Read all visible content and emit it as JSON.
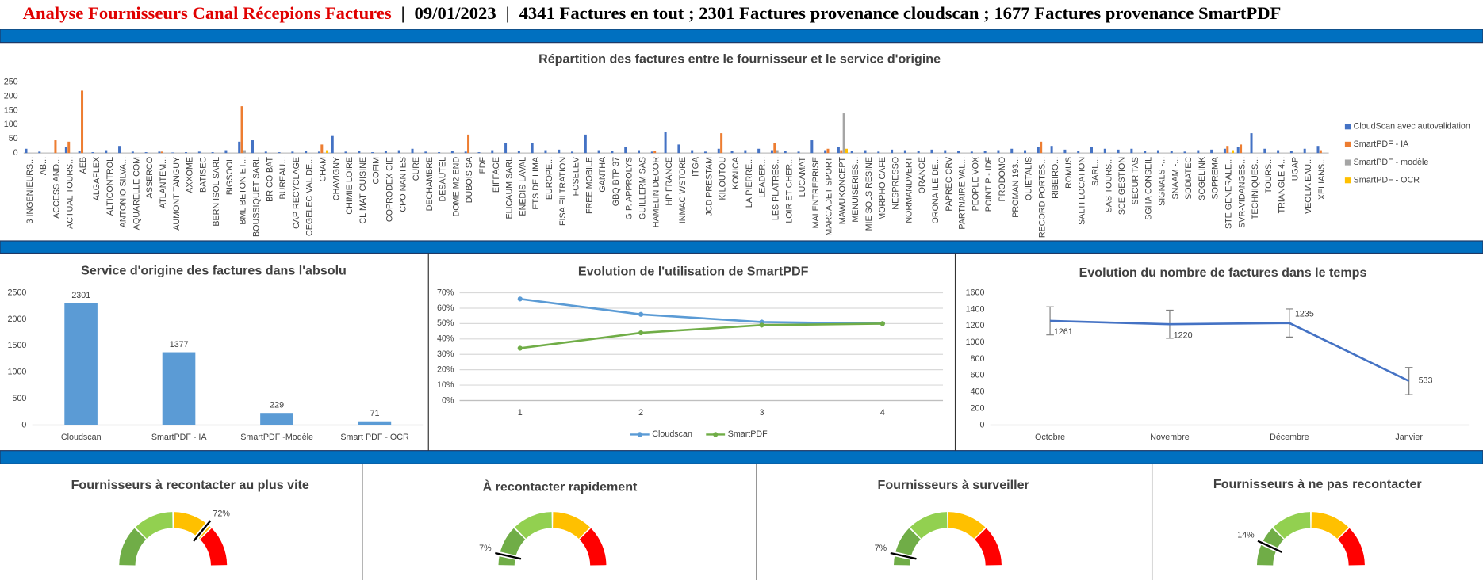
{
  "header": {
    "title": "Analyse Fournisseurs Canal Récepions Factures",
    "separator": "|",
    "date": "09/01/2023",
    "summary": "4341 Factures en tout ; 2301 Factures provenance cloudscan ; 1677 Factures provenance SmartPDF"
  },
  "chart_data": [
    {
      "type": "bar",
      "title": "Répartition des factures entre le fournisseur et le service d'origine",
      "categories": [
        "3 INGENIEURS...",
        "AB...",
        "ACCESS AND...",
        "ACTUAL TOURS...",
        "AEB",
        "ALGAFLEX",
        "ALTICONTROL",
        "ANTONIO SILVA...",
        "AQUARELLE COM",
        "ASSERCO",
        "ATLANTEM...",
        "AUMONT TANGUY",
        "AXXOME",
        "BATISEC",
        "BERN ISOL SARL",
        "BIGSOOL",
        "BML BETON ET...",
        "BOUSSIQUET SARL",
        "BRICO BAT",
        "BUREAU...",
        "CAP RECYCLAGE",
        "CEGELEC VAL DE...",
        "CHAM",
        "CHAVIGNY",
        "CHIMIE LOIRE",
        "CLIMAT CUISINE",
        "COFIM",
        "COPRODEX CIE",
        "CPO NANTES",
        "CURE",
        "DECHAMBRE",
        "DESAUTEL",
        "DOME M2 END",
        "DUBOIS SA",
        "EDF",
        "EIFFAGE",
        "ELICAUM SARL",
        "ENEDIS LAVAL",
        "ETS DE LIMA",
        "EUROPE...",
        "FISA FILTRATION",
        "FOSELEV",
        "FREE MOBILE",
        "GANTHA",
        "GBQ BTP 37",
        "GIP. APPROLYS",
        "GUILLERM SAS",
        "HAMELIN DECOR",
        "HP FRANCE",
        "INMAC WSTORE",
        "ITGA",
        "JCD PRESTAM",
        "KILOUTOU",
        "KONICA",
        "LA PIERRE...",
        "LEADER...",
        "LES PLATRES...",
        "LOIR ET CHER...",
        "LUCAMAT",
        "MAI ENTREPRISE",
        "MARCADET SPORT",
        "MAWUKONCEPT",
        "MENUISERIES...",
        "MIE SOLS RESINE",
        "MORPHO CAFE",
        "NESPRESSO",
        "NORMANDVERT",
        "ORANGE",
        "ORONA ILE DE...",
        "PAPREC CRV",
        "PARTNAIRE VAL...",
        "PEOPLE VOX",
        "POINT P - IDF",
        "PRODOMO",
        "PROMAN 193...",
        "QUIETALIS",
        "RECORD PORTES...",
        "RIBEIRO...",
        "ROMUS",
        "SALTI LOCATION",
        "SARL...",
        "SAS TOURS...",
        "SCE GESTION",
        "SECURITAS",
        "SGHA CONSEIL",
        "SIGNALS -...",
        "SNAAM -...",
        "SODIATEC",
        "SOGELINK",
        "SOPREMA",
        "STE GENERALE...",
        "SVR-VIDANGES...",
        "TECHNIQUES...",
        "TOURS...",
        "TRIANGLE 4...",
        "UGAP",
        "VEOLIA EAU...",
        "XELIANS..."
      ],
      "series": [
        {
          "name": "CloudScan avec autovalidation",
          "color": "#4472c4",
          "values": [
            15,
            5,
            0,
            20,
            8,
            3,
            10,
            25,
            5,
            3,
            5,
            2,
            3,
            5,
            3,
            10,
            40,
            45,
            5,
            3,
            5,
            8,
            5,
            60,
            5,
            8,
            3,
            8,
            10,
            15,
            5,
            3,
            8,
            5,
            3,
            10,
            35,
            8,
            35,
            10,
            12,
            5,
            65,
            10,
            8,
            20,
            10,
            5,
            75,
            30,
            10,
            5,
            15,
            8,
            10,
            15,
            10,
            8,
            5,
            45,
            10,
            20,
            8,
            10,
            5,
            12,
            10,
            8,
            12,
            10,
            8,
            5,
            8,
            10,
            15,
            10,
            20,
            25,
            12,
            8,
            20,
            15,
            12,
            15,
            8,
            10,
            8,
            5,
            10,
            12,
            15,
            20,
            70,
            15,
            10,
            8,
            15,
            25
          ]
        },
        {
          "name": "SmartPDF - IA",
          "color": "#ed7d31",
          "values": [
            0,
            0,
            45,
            40,
            220,
            0,
            0,
            0,
            0,
            0,
            5,
            0,
            0,
            0,
            0,
            0,
            165,
            0,
            0,
            0,
            0,
            0,
            30,
            0,
            0,
            0,
            0,
            0,
            0,
            0,
            0,
            0,
            0,
            65,
            0,
            0,
            0,
            0,
            0,
            0,
            0,
            0,
            0,
            0,
            0,
            0,
            0,
            8,
            0,
            0,
            0,
            0,
            70,
            0,
            0,
            0,
            35,
            0,
            0,
            0,
            15,
            10,
            0,
            0,
            0,
            0,
            0,
            0,
            0,
            0,
            0,
            0,
            0,
            0,
            0,
            0,
            40,
            0,
            0,
            0,
            0,
            0,
            0,
            0,
            0,
            0,
            0,
            0,
            0,
            0,
            25,
            30,
            0,
            0,
            0,
            0,
            0,
            10
          ]
        },
        {
          "name": "SmartPDF - modèle",
          "color": "#a5a5a5",
          "values": [
            0,
            0,
            0,
            0,
            0,
            0,
            0,
            0,
            0,
            0,
            0,
            0,
            0,
            0,
            0,
            0,
            10,
            0,
            0,
            0,
            0,
            0,
            0,
            0,
            0,
            0,
            0,
            0,
            0,
            0,
            0,
            0,
            0,
            0,
            0,
            0,
            0,
            0,
            0,
            0,
            0,
            0,
            0,
            0,
            0,
            0,
            0,
            0,
            0,
            0,
            0,
            0,
            0,
            0,
            0,
            0,
            10,
            0,
            0,
            0,
            0,
            140,
            0,
            0,
            0,
            0,
            0,
            0,
            0,
            0,
            0,
            0,
            0,
            0,
            0,
            0,
            0,
            0,
            0,
            0,
            0,
            0,
            0,
            0,
            0,
            0,
            0,
            0,
            0,
            0,
            0,
            0,
            0,
            0,
            0,
            0,
            0,
            0
          ]
        },
        {
          "name": "SmartPDF - OCR",
          "color": "#ffc000",
          "values": [
            0,
            0,
            0,
            0,
            0,
            0,
            0,
            0,
            0,
            0,
            0,
            0,
            0,
            0,
            0,
            0,
            0,
            0,
            0,
            0,
            0,
            0,
            10,
            0,
            0,
            0,
            0,
            0,
            0,
            0,
            0,
            0,
            0,
            0,
            0,
            0,
            0,
            0,
            0,
            0,
            0,
            0,
            0,
            0,
            0,
            0,
            0,
            0,
            0,
            0,
            0,
            0,
            0,
            0,
            0,
            0,
            0,
            0,
            0,
            0,
            0,
            15,
            0,
            0,
            0,
            0,
            0,
            0,
            0,
            0,
            0,
            0,
            0,
            0,
            0,
            0,
            0,
            0,
            0,
            0,
            0,
            0,
            0,
            0,
            0,
            0,
            0,
            0,
            0,
            0,
            10,
            0,
            0,
            0,
            0,
            0,
            0,
            0
          ]
        }
      ],
      "ylim": [
        0,
        250
      ],
      "yticks": [
        0,
        50,
        100,
        150,
        200,
        250
      ],
      "grid": false,
      "legend": "right"
    },
    {
      "type": "bar",
      "title": "Service d'origine des factures dans l'absolu",
      "categories": [
        "Cloudscan",
        "SmartPDF - IA",
        "SmartPDF -Modèle",
        "Smart PDF - OCR"
      ],
      "values": [
        2301,
        1377,
        229,
        71
      ],
      "color": "#5b9bd5",
      "ylim": [
        0,
        2500
      ],
      "yticks": [
        0,
        500,
        1000,
        1500,
        2000,
        2500
      ],
      "grid": false,
      "data_labels": true
    },
    {
      "type": "line",
      "title": "Evolution de l'utilisation de SmartPDF",
      "categories": [
        "1",
        "2",
        "3",
        "4"
      ],
      "series": [
        {
          "name": "Cloudscan",
          "color": "#5b9bd5",
          "values": [
            66,
            56,
            51,
            50
          ]
        },
        {
          "name": "SmartPDF",
          "color": "#70ad47",
          "values": [
            34,
            44,
            49,
            50
          ]
        }
      ],
      "ylim": [
        0,
        70
      ],
      "yticks": [
        {
          "value": 0,
          "label": "0%"
        },
        {
          "value": 10,
          "label": "10%"
        },
        {
          "value": 20,
          "label": "20%"
        },
        {
          "value": 30,
          "label": "30%"
        },
        {
          "value": 40,
          "label": "40%"
        },
        {
          "value": 50,
          "label": "50%"
        },
        {
          "value": 60,
          "label": "60%"
        },
        {
          "value": 70,
          "label": "70%"
        }
      ],
      "grid": true,
      "legend": "bottom",
      "markers": true
    },
    {
      "type": "line",
      "title": "Evolution du nombre de factures dans le temps",
      "categories": [
        "Octobre",
        "Novembre",
        "Décembre",
        "Janvier"
      ],
      "values": [
        1261,
        1220,
        1235,
        533
      ],
      "errors": [
        170,
        170,
        170,
        165
      ],
      "color": "#4472c4",
      "ylim": [
        0,
        1600
      ],
      "yticks": [
        0,
        200,
        400,
        600,
        800,
        1000,
        1200,
        1400,
        1600
      ],
      "grid": false,
      "data_labels": true
    },
    {
      "type": "gauge",
      "title": "Fournisseurs à recontacter au plus vite",
      "value": 72,
      "value_label": "72%",
      "ylim": [
        0,
        100
      ],
      "colors": [
        "#70ad47",
        "#92d050",
        "#ffc000",
        "#ff0000"
      ]
    },
    {
      "type": "gauge",
      "title": "À recontacter rapidement",
      "value": 7,
      "value_label": "7%",
      "ylim": [
        0,
        100
      ],
      "colors": [
        "#70ad47",
        "#92d050",
        "#ffc000",
        "#ff0000"
      ]
    },
    {
      "type": "gauge",
      "title": "Fournisseurs à surveiller",
      "value": 7,
      "value_label": "7%",
      "ylim": [
        0,
        100
      ],
      "colors": [
        "#70ad47",
        "#92d050",
        "#ffc000",
        "#ff0000"
      ]
    },
    {
      "type": "gauge",
      "title": "Fournisseurs à ne pas recontacter",
      "value": 14,
      "value_label": "14%",
      "ylim": [
        0,
        100
      ],
      "colors": [
        "#70ad47",
        "#92d050",
        "#ffc000",
        "#ff0000"
      ]
    }
  ]
}
